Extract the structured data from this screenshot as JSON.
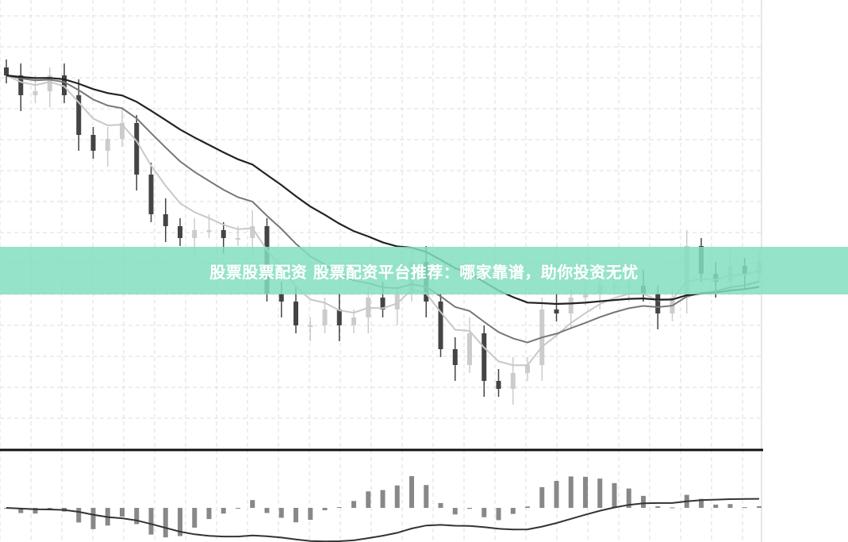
{
  "banner": {
    "title": "股票股票配资 股票配资平台推荐：哪家靠谱，助你投资无忧"
  },
  "colors": {
    "banner": "#82dec0",
    "up": "#cccccc",
    "down": "#444444",
    "ma_short": "#c8c8c8",
    "ma_mid": "#777777",
    "ma_long": "#222222",
    "macd_bar": "#888888"
  },
  "chart_data": {
    "type": "candlestick",
    "title": "",
    "grid": true,
    "closes": [
      101,
      96,
      97,
      101,
      96,
      86,
      82,
      85,
      89,
      76,
      66,
      63,
      60,
      62,
      62,
      60,
      60,
      63,
      46,
      44,
      38,
      38,
      42,
      38,
      40,
      45,
      42,
      46,
      54,
      44,
      32,
      28,
      36,
      24,
      22,
      26,
      28,
      42,
      41,
      45,
      46,
      48,
      48,
      48,
      46,
      41,
      45,
      58,
      51,
      49,
      53,
      51,
      54
    ],
    "overlays": [
      "moving-average-short",
      "moving-average-mid",
      "moving-average-long"
    ],
    "lower_panel": "macd-histogram-with-signal-line"
  }
}
